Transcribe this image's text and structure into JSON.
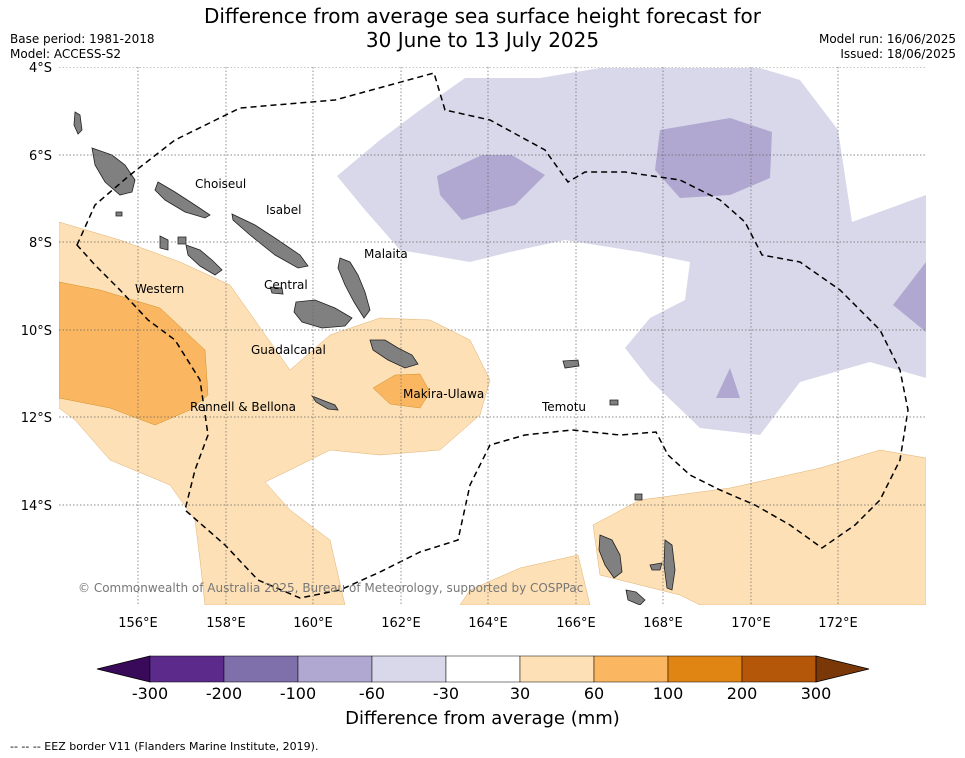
{
  "title": {
    "line1": "Difference from average sea surface height forecast for",
    "line2": "30 June to 13 July 2025"
  },
  "meta": {
    "base_period": "Base period: 1981-2018",
    "model": "Model: ACCESS-S2",
    "model_run": "Model run: 16/06/2025",
    "issued": "Issued: 18/06/2025"
  },
  "map": {
    "lat_labels": [
      "4°S",
      "6°S",
      "8°S",
      "10°S",
      "12°S",
      "14°S"
    ],
    "lon_labels": [
      "156°E",
      "158°E",
      "160°E",
      "162°E",
      "164°E",
      "166°E",
      "168°E",
      "170°E",
      "172°E"
    ],
    "province_labels": [
      "Choiseul",
      "Isabel",
      "Malaita",
      "Western",
      "Central",
      "Guadalcanal",
      "Makira-Ulawa",
      "Rennell & Bellona",
      "Temotu"
    ],
    "copyright": "© Commonwealth of Australia 2025, Bureau of Meteorology, supported by COSPPac",
    "colors": {
      "land": "#808080",
      "neg_60_to_30": "#d8d8ea",
      "neg_100_to_60": "#b0a8d0",
      "pos_30_to_60": "#fde0b5",
      "pos_60_to_100": "#fab660"
    }
  },
  "colorbar": {
    "ticks": [
      "-300",
      "-200",
      "-100",
      "-60",
      "-30",
      "30",
      "60",
      "100",
      "200",
      "300"
    ],
    "colors": [
      "#3a0a5a",
      "#5b2a8a",
      "#7f6fab",
      "#b0a8d0",
      "#d8d8ea",
      "#ffffff",
      "#fde0b5",
      "#fab660",
      "#e08414",
      "#b55708",
      "#7a3808"
    ],
    "title": "Difference from average (mm)"
  },
  "footnote": "--  --  -- EEZ border V11 (Flanders Marine Institute, 2019)."
}
